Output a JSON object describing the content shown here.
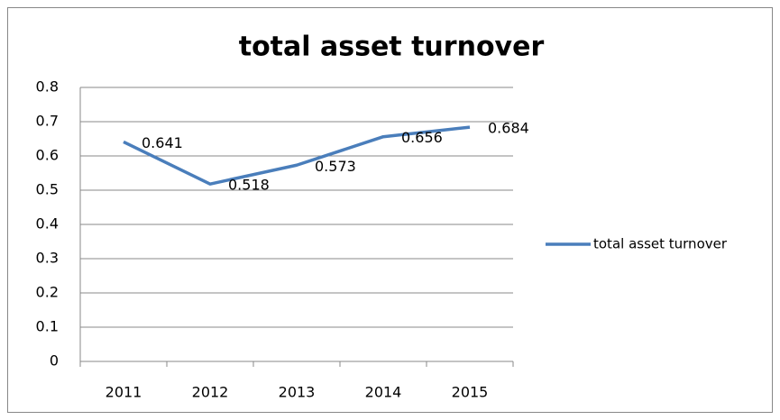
{
  "chart_data": {
    "type": "line",
    "title": "total asset turnover",
    "categories": [
      "2011",
      "2012",
      "2013",
      "2014",
      "2015"
    ],
    "series": [
      {
        "name": "total asset turnover",
        "color": "#4a7ebb",
        "values": [
          0.641,
          0.518,
          0.573,
          0.656,
          0.684
        ]
      }
    ],
    "ylim": [
      0,
      0.8
    ],
    "yticks": [
      0,
      0.1,
      0.2,
      0.3,
      0.4,
      0.5,
      0.6,
      0.7,
      0.8
    ],
    "grid": true,
    "legend": "right",
    "data_labels": true
  }
}
